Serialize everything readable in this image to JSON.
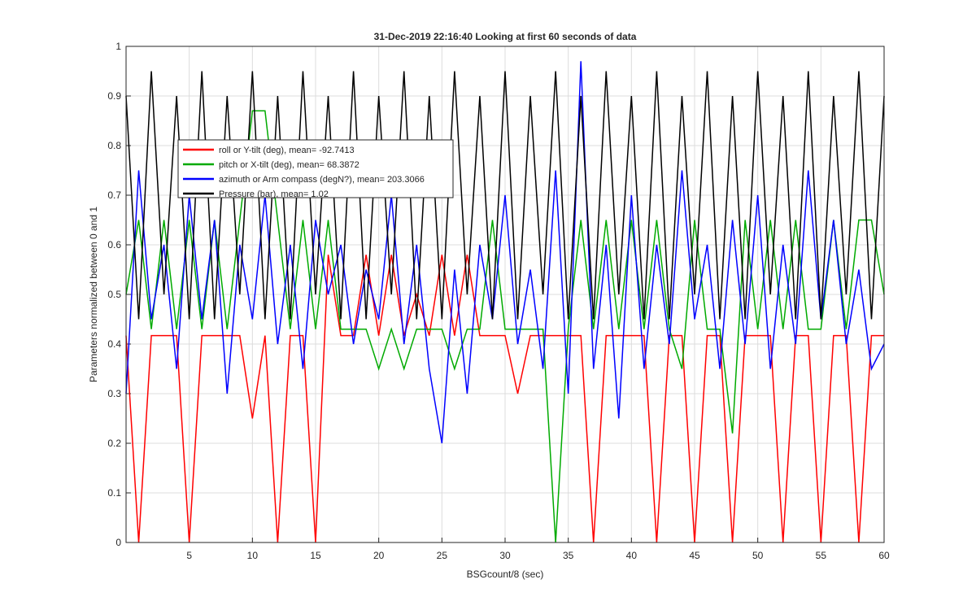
{
  "chart_data": {
    "type": "line",
    "title": "31-Dec-2019 22:16:40 Looking at first 60 seconds of data",
    "xlabel": "BSGcount/8 (sec)",
    "ylabel": "Parameters normalized between 0 and 1",
    "x": [
      0,
      1,
      2,
      3,
      4,
      5,
      6,
      7,
      8,
      9,
      10,
      11,
      12,
      13,
      14,
      15,
      16,
      17,
      18,
      19,
      20,
      21,
      22,
      23,
      24,
      25,
      26,
      27,
      28,
      29,
      30,
      31,
      32,
      33,
      34,
      35,
      36,
      37,
      38,
      39,
      40,
      41,
      42,
      43,
      44,
      45,
      46,
      47,
      48,
      49,
      50,
      51,
      52,
      53,
      54,
      55,
      56,
      57,
      58,
      59,
      60
    ],
    "series": [
      {
        "name": "roll or Y-tilt (deg), mean= -92.7413",
        "color": "#ff0000",
        "values": [
          0.417,
          0,
          0.417,
          0.417,
          0.417,
          0,
          0.417,
          0.417,
          0.417,
          0.417,
          0.25,
          0.417,
          0,
          0.417,
          0.417,
          0,
          0.58,
          0.417,
          0.417,
          0.58,
          0.417,
          0.58,
          0.417,
          0.5,
          0.417,
          0.58,
          0.417,
          0.58,
          0.417,
          0.417,
          0.417,
          0.3,
          0.417,
          0.417,
          0.417,
          0.417,
          0.417,
          0,
          0.417,
          0.417,
          0.417,
          0.417,
          0,
          0.417,
          0.417,
          0,
          0.417,
          0.417,
          0,
          0.417,
          0.417,
          0.417,
          0,
          0.417,
          0.417,
          0,
          0.417,
          0.417,
          0,
          0.417,
          0.417
        ]
      },
      {
        "name": "pitch or X-tilt (deg), mean= 68.3872",
        "color": "#00aa00",
        "values": [
          0.5,
          0.65,
          0.43,
          0.65,
          0.43,
          0.65,
          0.43,
          0.65,
          0.43,
          0.65,
          0.87,
          0.87,
          0.65,
          0.43,
          0.65,
          0.43,
          0.65,
          0.43,
          0.43,
          0.43,
          0.35,
          0.43,
          0.35,
          0.43,
          0.43,
          0.43,
          0.35,
          0.43,
          0.43,
          0.65,
          0.43,
          0.43,
          0.43,
          0.43,
          0,
          0.43,
          0.65,
          0.43,
          0.65,
          0.43,
          0.65,
          0.43,
          0.65,
          0.43,
          0.35,
          0.65,
          0.43,
          0.43,
          0.22,
          0.65,
          0.43,
          0.65,
          0.43,
          0.65,
          0.43,
          0.43,
          0.65,
          0.43,
          0.65,
          0.65,
          0.5
        ]
      },
      {
        "name": "azimuth or Arm compass (degN?), mean= 203.3066",
        "color": "#0000ff",
        "values": [
          0.3,
          0.75,
          0.45,
          0.6,
          0.35,
          0.7,
          0.45,
          0.65,
          0.3,
          0.6,
          0.45,
          0.7,
          0.4,
          0.6,
          0.35,
          0.65,
          0.5,
          0.6,
          0.4,
          0.55,
          0.45,
          0.7,
          0.4,
          0.6,
          0.35,
          0.2,
          0.55,
          0.3,
          0.6,
          0.45,
          0.7,
          0.4,
          0.55,
          0.35,
          0.75,
          0.3,
          0.97,
          0.35,
          0.6,
          0.25,
          0.7,
          0.35,
          0.6,
          0.4,
          0.75,
          0.45,
          0.6,
          0.35,
          0.65,
          0.4,
          0.7,
          0.35,
          0.6,
          0.4,
          0.75,
          0.45,
          0.65,
          0.4,
          0.55,
          0.35,
          0.4
        ]
      },
      {
        "name": "Pressure (bar), mean= 1.02",
        "color": "#000000",
        "values": [
          0.9,
          0.45,
          0.95,
          0.5,
          0.9,
          0.45,
          0.95,
          0.45,
          0.9,
          0.5,
          0.95,
          0.45,
          0.9,
          0.45,
          0.95,
          0.5,
          0.9,
          0.45,
          0.95,
          0.45,
          0.9,
          0.5,
          0.95,
          0.45,
          0.9,
          0.45,
          0.95,
          0.5,
          0.9,
          0.45,
          0.95,
          0.45,
          0.9,
          0.5,
          0.95,
          0.45,
          0.9,
          0.45,
          0.95,
          0.5,
          0.9,
          0.45,
          0.95,
          0.45,
          0.9,
          0.5,
          0.95,
          0.45,
          0.9,
          0.45,
          0.95,
          0.5,
          0.9,
          0.45,
          0.95,
          0.45,
          0.9,
          0.5,
          0.95,
          0.45,
          0.9
        ]
      }
    ],
    "xlim": [
      0,
      60
    ],
    "xticks": [
      5,
      10,
      15,
      20,
      25,
      30,
      35,
      40,
      45,
      50,
      55,
      60
    ],
    "ylim": [
      0,
      1
    ],
    "yticks": [
      0,
      0.1,
      0.2,
      0.3,
      0.4,
      0.5,
      0.6,
      0.7,
      0.8,
      0.9,
      1
    ],
    "grid": true,
    "legend": "upper left"
  }
}
